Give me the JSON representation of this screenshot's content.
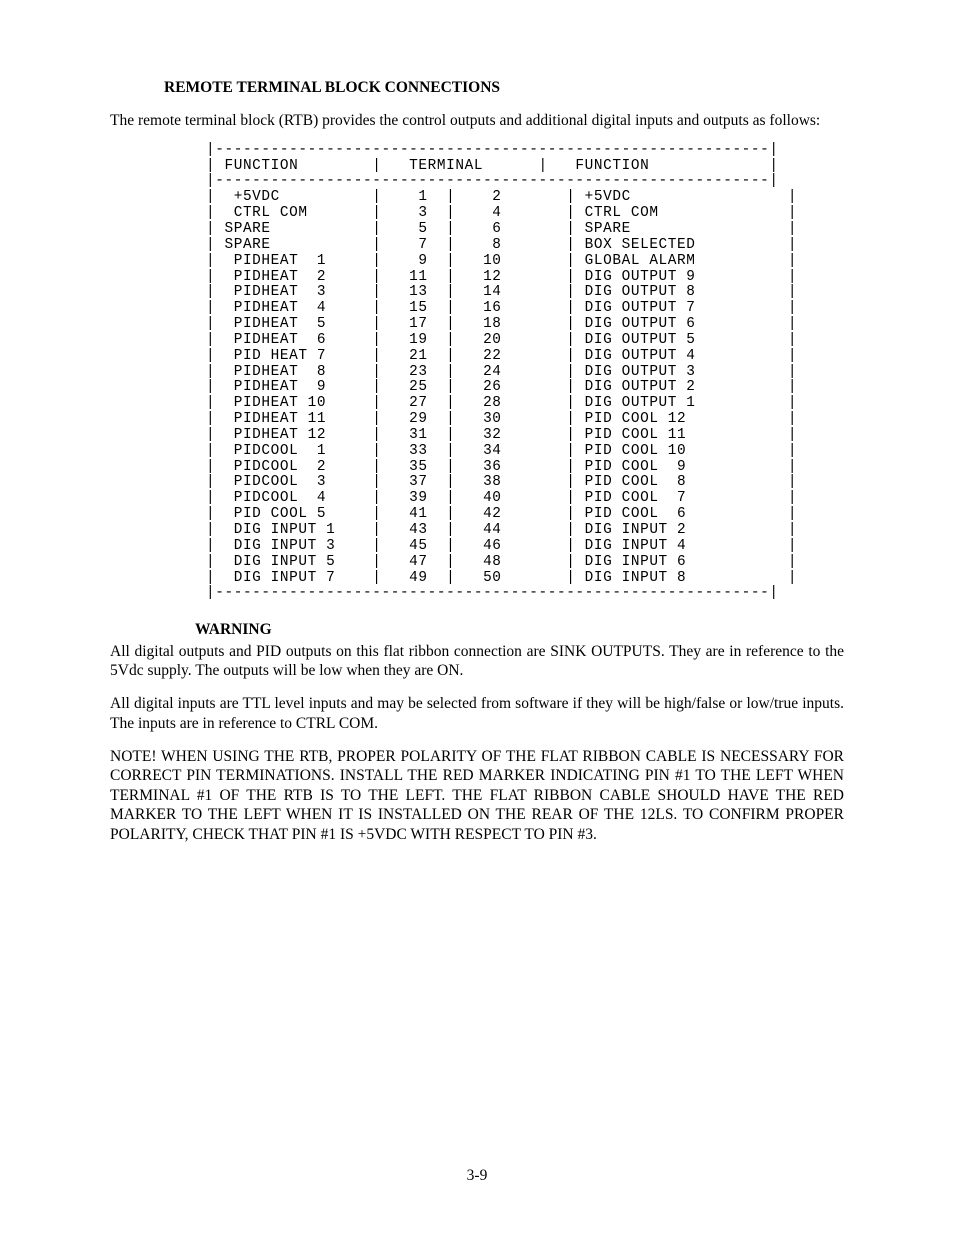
{
  "title": "REMOTE TERMINAL BLOCK CONNECTIONS",
  "intro": "The remote terminal block (RTB) provides the control outputs and additional digital inputs and outputs as follows:",
  "table": {
    "hdr_func_left": "FUNCTION",
    "hdr_term": "TERMINAL",
    "hdr_func_right": "FUNCTION",
    "ruleTop": "|------------------------------------------------------------|",
    "hdrLine": "| FUNCTION        |   TERMINAL      |   FUNCTION             |",
    "rows": [
      {
        "fl": " +5VDC",
        "t1": "1",
        "t2": "2",
        "fr": "+5VDC"
      },
      {
        "fl": " CTRL COM",
        "t1": "3",
        "t2": "4",
        "fr": "CTRL COM"
      },
      {
        "fl": "SPARE",
        "t1": "5",
        "t2": "6",
        "fr": "SPARE"
      },
      {
        "fl": "SPARE",
        "t1": "7",
        "t2": "8",
        "fr": "BOX SELECTED"
      },
      {
        "fl": " PIDHEAT  1",
        "t1": "9",
        "t2": "10",
        "fr": "GLOBAL ALARM"
      },
      {
        "fl": " PIDHEAT  2",
        "t1": "11",
        "t2": "12",
        "fr": "DIG OUTPUT 9"
      },
      {
        "fl": " PIDHEAT  3",
        "t1": "13",
        "t2": "14",
        "fr": "DIG OUTPUT 8"
      },
      {
        "fl": " PIDHEAT  4",
        "t1": "15",
        "t2": "16",
        "fr": "DIG OUTPUT 7"
      },
      {
        "fl": " PIDHEAT  5",
        "t1": "17",
        "t2": "18",
        "fr": "DIG OUTPUT 6"
      },
      {
        "fl": " PIDHEAT  6",
        "t1": "19",
        "t2": "20",
        "fr": "DIG OUTPUT 5"
      },
      {
        "fl": " PID HEAT 7",
        "t1": "21",
        "t2": "22",
        "fr": "DIG OUTPUT 4"
      },
      {
        "fl": " PIDHEAT  8",
        "t1": "23",
        "t2": "24",
        "fr": "DIG OUTPUT 3"
      },
      {
        "fl": " PIDHEAT  9",
        "t1": "25",
        "t2": "26",
        "fr": "DIG OUTPUT 2"
      },
      {
        "fl": " PIDHEAT 10",
        "t1": "27",
        "t2": "28",
        "fr": "DIG OUTPUT 1"
      },
      {
        "fl": " PIDHEAT 11",
        "t1": "29",
        "t2": "30",
        "fr": "PID COOL 12"
      },
      {
        "fl": " PIDHEAT 12",
        "t1": "31",
        "t2": "32",
        "fr": "PID COOL 11"
      },
      {
        "fl": " PIDCOOL  1",
        "t1": "33",
        "t2": "34",
        "fr": "PID COOL 10"
      },
      {
        "fl": " PIDCOOL  2",
        "t1": "35",
        "t2": "36",
        "fr": "PID COOL  9"
      },
      {
        "fl": " PIDCOOL  3",
        "t1": "37",
        "t2": "38",
        "fr": "PID COOL  8"
      },
      {
        "fl": " PIDCOOL  4",
        "t1": "39",
        "t2": "40",
        "fr": "PID COOL  7"
      },
      {
        "fl": " PID COOL 5",
        "t1": "41",
        "t2": "42",
        "fr": "PID COOL  6"
      },
      {
        "fl": " DIG INPUT 1",
        "t1": "43",
        "t2": "44",
        "fr": "DIG INPUT 2"
      },
      {
        "fl": " DIG INPUT 3",
        "t1": "45",
        "t2": "46",
        "fr": "DIG INPUT 4"
      },
      {
        "fl": " DIG INPUT 5",
        "t1": "47",
        "t2": "48",
        "fr": "DIG INPUT 6"
      },
      {
        "fl": " DIG INPUT 7",
        "t1": "49",
        "t2": "50",
        "fr": "DIG INPUT 8"
      }
    ],
    "colWidths": {
      "fl": 16,
      "t1": 5,
      "t2": 5,
      "fr": 22
    }
  },
  "warningLabel": "WARNING",
  "para1": "All digital outputs and PID outputs on this flat ribbon connection are SINK OUTPUTS. They are in reference to the 5Vdc supply. The outputs will be low when they are ON.",
  "para2": "All digital inputs are TTL level inputs and may be selected from software if they will be high/false or low/true inputs. The inputs are in reference to CTRL COM.",
  "note": "NOTE! WHEN USING THE RTB, PROPER POLARITY OF THE FLAT RIBBON CABLE IS NECESSARY FOR CORRECT PIN TERMINATIONS. INSTALL THE RED MARKER INDICATING PIN #1 TO THE LEFT WHEN TERMINAL #1 OF THE RTB IS TO THE LEFT. THE FLAT RIBBON CABLE SHOULD HAVE THE RED MARKER TO THE LEFT WHEN IT IS INSTALLED ON THE REAR OF THE 12LS. TO CONFIRM PROPER POLARITY, CHECK THAT PIN #1 IS +5VDC WITH RESPECT TO PIN #3.",
  "pageNumber": "3-9"
}
